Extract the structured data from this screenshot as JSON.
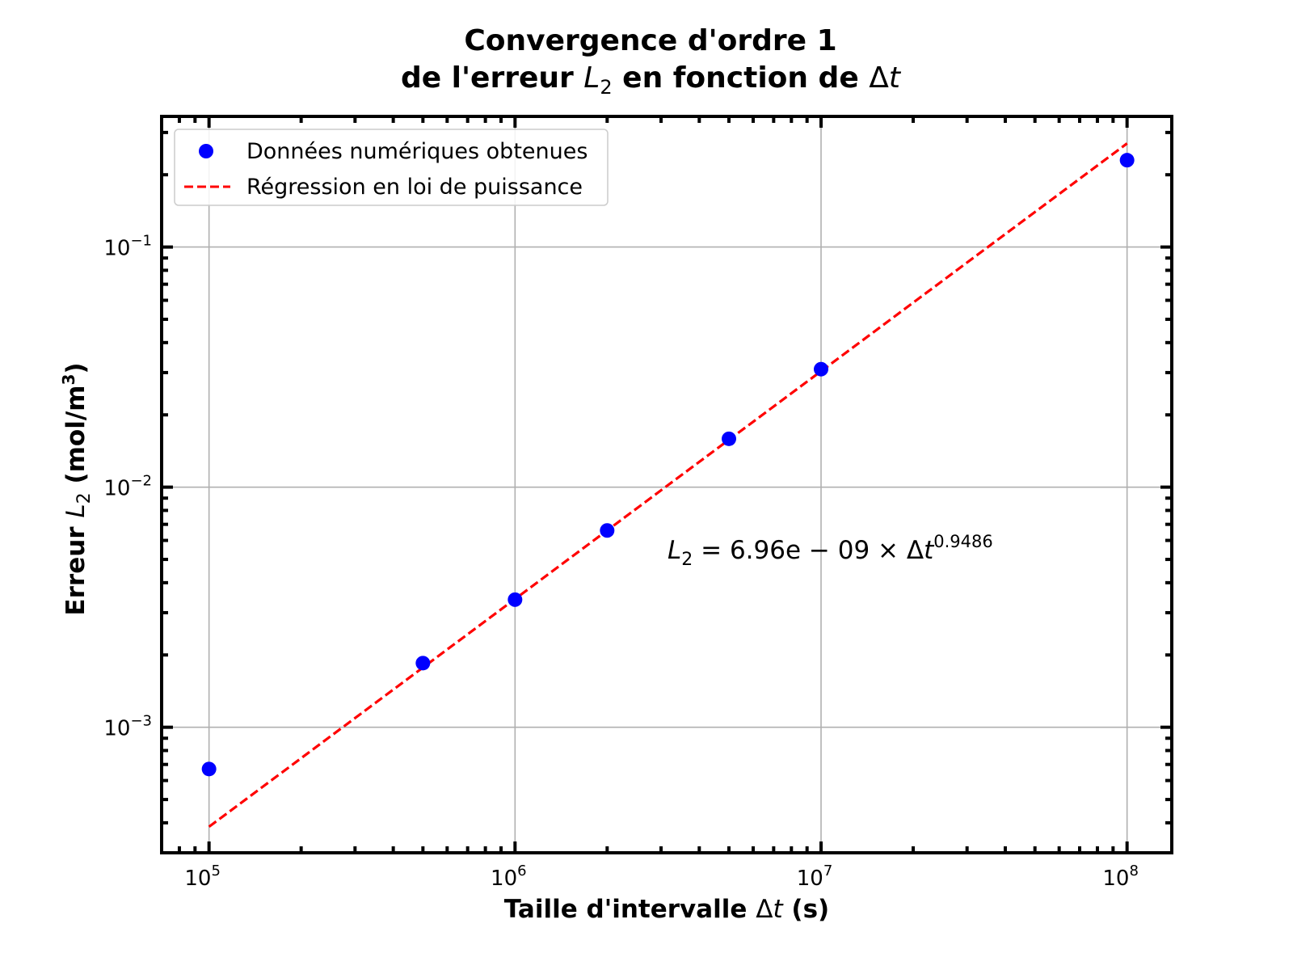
{
  "title": {
    "line1": "Convergence d'ordre 1",
    "line2_prefix": "de l'erreur ",
    "line2_math_var": "L",
    "line2_math_sub": "2",
    "line2_middle": " en fonction de ",
    "line2_delta": "Δ",
    "line2_t": "t"
  },
  "xaxis": {
    "label_prefix": "Taille d'intervalle ",
    "label_delta": "Δ",
    "label_t": "t",
    "label_suffix": " (s)"
  },
  "yaxis": {
    "label_prefix": "Erreur ",
    "label_var": "L",
    "label_sub": "2",
    "label_units": " (mol/m",
    "label_units_sup": "3",
    "label_close": ")"
  },
  "legend": {
    "placement": "top-left",
    "items": [
      {
        "label": "Données numériques obtenues",
        "marker": "circle",
        "color": "#0000ff"
      },
      {
        "label": "Régression en loi de puissance",
        "marker": "dashed-line",
        "color": "#ff0000"
      }
    ]
  },
  "annotation": {
    "var": "L",
    "sub": "2",
    "body": " = 6.96e − 09 × Δ",
    "t": "t",
    "exp": "0.9486"
  },
  "chart_data": {
    "type": "scatter",
    "xscale": "log",
    "yscale": "log",
    "grid": true,
    "xlim": [
      70000,
      140000000
    ],
    "ylim": [
      0.0003,
      0.35
    ],
    "xticks": [
      {
        "value": 100000,
        "base": "10",
        "exp": "5"
      },
      {
        "value": 1000000,
        "base": "10",
        "exp": "6"
      },
      {
        "value": 10000000,
        "base": "10",
        "exp": "7"
      },
      {
        "value": 100000000,
        "base": "10",
        "exp": "8"
      }
    ],
    "yticks": [
      {
        "value": 0.001,
        "base": "10",
        "exp": "−3"
      },
      {
        "value": 0.01,
        "base": "10",
        "exp": "−2"
      },
      {
        "value": 0.1,
        "base": "10",
        "exp": "−1"
      }
    ],
    "series": [
      {
        "name": "Données numériques obtenues",
        "kind": "scatter",
        "color": "#0000ff",
        "x": [
          100000,
          500000,
          1000000,
          2000000,
          5000000,
          10000000,
          100000000
        ],
        "y": [
          0.00067,
          0.00185,
          0.0034,
          0.0066,
          0.0159,
          0.031,
          0.23
        ]
      },
      {
        "name": "Régression en loi de puissance",
        "kind": "line",
        "style": "dashed",
        "color": "#ff0000",
        "coef": 6.96e-09,
        "exponent": 0.9486,
        "x": [
          100000,
          100000000
        ]
      }
    ]
  }
}
